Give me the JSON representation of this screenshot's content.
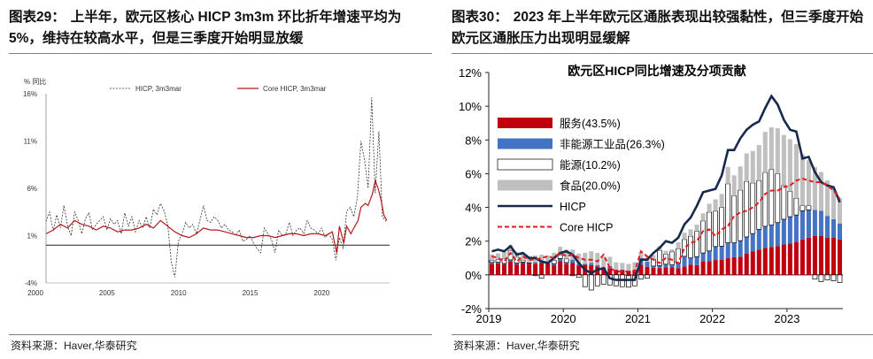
{
  "left": {
    "title_prefix": "图表29：",
    "title": "上半年，欧元区核心 HICP 3m3m 环比折年增速平均为 5%，维持在较高水平，但是三季度开始明显放缓",
    "source": "资料来源：Haver,华泰研究",
    "unit_label": "% 同比"
  },
  "right": {
    "title_prefix": "图表30：",
    "title": "2023 年上半年欧元区通胀表现出较强黏性，但三季度开始欧元区通胀压力出现明显缓解",
    "source": "资料来源：Haver,华泰研究"
  },
  "colors": {
    "core_red": "#b3191c",
    "hicp_line": "#333333",
    "services": "#c0000f",
    "neig": "#4473c4",
    "energy_fill": "#ffffff",
    "food": "#bfbfbf",
    "hicp_navy": "#17294d",
    "core_dashed": "#e41a1c"
  },
  "chart_data": [
    {
      "type": "line",
      "title": "",
      "unit": "% 同比",
      "ylim": [
        -4,
        16
      ],
      "yticks": [
        "16%",
        "11%",
        "6%",
        "1%",
        "-4%"
      ],
      "ytick_values": [
        16,
        11,
        6,
        1,
        -4
      ],
      "xlim": [
        2000,
        2024
      ],
      "xticks": [
        "2000",
        "2005",
        "2010",
        "2015",
        "2020"
      ],
      "xtick_values": [
        2000,
        2005,
        2010,
        2015,
        2020
      ],
      "series": [
        {
          "name": "HICP, 3m3mar",
          "style": "dashed",
          "x": [
            2000.0,
            2000.25,
            2000.5,
            2000.75,
            2001.0,
            2001.25,
            2001.5,
            2001.75,
            2002.0,
            2002.25,
            2002.5,
            2002.75,
            2003.0,
            2003.25,
            2003.5,
            2003.75,
            2004.0,
            2004.25,
            2004.5,
            2004.75,
            2005.0,
            2005.25,
            2005.5,
            2005.75,
            2006.0,
            2006.25,
            2006.5,
            2006.75,
            2007.0,
            2007.25,
            2007.5,
            2007.75,
            2008.0,
            2008.25,
            2008.5,
            2008.75,
            2009.0,
            2009.25,
            2009.5,
            2009.75,
            2010.0,
            2010.25,
            2010.5,
            2010.75,
            2011.0,
            2011.25,
            2011.5,
            2011.75,
            2012.0,
            2012.25,
            2012.5,
            2012.75,
            2013.0,
            2013.25,
            2013.5,
            2013.75,
            2014.0,
            2014.25,
            2014.5,
            2014.75,
            2015.0,
            2015.25,
            2015.5,
            2015.75,
            2016.0,
            2016.25,
            2016.5,
            2016.75,
            2017.0,
            2017.25,
            2017.5,
            2017.75,
            2018.0,
            2018.25,
            2018.5,
            2018.75,
            2019.0,
            2019.25,
            2019.5,
            2019.75,
            2020.0,
            2020.25,
            2020.5,
            2020.75,
            2021.0,
            2021.25,
            2021.5,
            2021.75,
            2022.0,
            2022.25,
            2022.5,
            2022.75,
            2023.0,
            2023.25,
            2023.5,
            2023.75
          ],
          "values": [
            2.5,
            3.5,
            1.5,
            3.2,
            1.8,
            4.2,
            2.0,
            1.0,
            3.5,
            2.6,
            1.2,
            2.8,
            3.4,
            1.6,
            2.2,
            2.6,
            3.0,
            1.6,
            2.8,
            2.2,
            2.6,
            1.2,
            3.4,
            2.0,
            3.0,
            1.4,
            2.6,
            1.8,
            3.0,
            1.8,
            3.8,
            3.2,
            4.4,
            3.6,
            2.2,
            -1.8,
            -3.4,
            0.4,
            1.2,
            2.4,
            1.8,
            2.2,
            1.2,
            2.6,
            4.2,
            2.6,
            2.4,
            3.0,
            2.6,
            1.8,
            2.2,
            1.6,
            1.4,
            1.0,
            1.6,
            0.4,
            0.6,
            1.0,
            0.2,
            -0.4,
            -0.8,
            1.8,
            1.2,
            0.6,
            -0.8,
            1.6,
            1.0,
            1.2,
            2.4,
            1.0,
            1.6,
            1.8,
            1.2,
            2.6,
            1.8,
            1.6,
            1.2,
            1.8,
            0.8,
            1.2,
            0.6,
            -1.6,
            0.8,
            -0.4,
            3.6,
            4.0,
            3.0,
            5.0,
            11.0,
            9.0,
            6.0,
            15.6,
            5.5,
            12.0,
            3.0,
            2.5
          ]
        },
        {
          "name": "Core HICP, 3m3mar",
          "style": "solid",
          "x": [
            2000.0,
            2000.5,
            2001.0,
            2001.5,
            2002.0,
            2002.5,
            2003.0,
            2003.5,
            2004.0,
            2004.5,
            2005.0,
            2005.5,
            2006.0,
            2006.5,
            2007.0,
            2007.5,
            2008.0,
            2008.5,
            2009.0,
            2009.5,
            2010.0,
            2010.5,
            2011.0,
            2011.5,
            2012.0,
            2012.5,
            2013.0,
            2013.5,
            2014.0,
            2014.5,
            2015.0,
            2015.5,
            2016.0,
            2016.5,
            2017.0,
            2017.5,
            2018.0,
            2018.5,
            2019.0,
            2019.5,
            2020.0,
            2020.3,
            2020.5,
            2020.8,
            2021.0,
            2021.3,
            2021.5,
            2021.8,
            2022.0,
            2022.3,
            2022.5,
            2022.8,
            2023.0,
            2023.2,
            2023.4,
            2023.6,
            2023.8
          ],
          "values": [
            1.2,
            1.6,
            2.2,
            1.8,
            2.6,
            2.2,
            2.0,
            1.6,
            2.0,
            1.8,
            1.4,
            1.6,
            1.6,
            1.8,
            2.2,
            1.8,
            2.6,
            2.0,
            1.4,
            1.0,
            0.8,
            1.2,
            1.8,
            1.6,
            1.6,
            1.4,
            1.2,
            1.0,
            0.8,
            0.8,
            1.0,
            1.0,
            0.8,
            1.0,
            1.2,
            1.2,
            1.0,
            1.2,
            1.2,
            1.0,
            1.4,
            -0.8,
            2.0,
            0.2,
            2.0,
            1.2,
            1.8,
            2.6,
            4.0,
            4.4,
            4.2,
            5.4,
            6.8,
            6.0,
            4.8,
            3.2,
            2.6
          ]
        }
      ]
    },
    {
      "type": "bar",
      "stacked": true,
      "title": "欧元区HICP同比增速及分项贡献",
      "ylim": [
        -2,
        12
      ],
      "yticks": [
        "12%",
        "10%",
        "8%",
        "6%",
        "4%",
        "2%",
        "0%",
        "-2%"
      ],
      "ytick_values": [
        12,
        10,
        8,
        6,
        4,
        2,
        0,
        -2
      ],
      "xticks": [
        "2019",
        "2020",
        "2021",
        "2022",
        "2023"
      ],
      "xtick_index": [
        0,
        12,
        24,
        36,
        48
      ],
      "n_months": 57,
      "series": [
        {
          "name": "服务(43.5%)",
          "key": "services",
          "values": [
            0.66,
            0.68,
            0.62,
            0.8,
            0.62,
            0.7,
            0.64,
            0.66,
            0.72,
            0.68,
            0.58,
            0.82,
            0.66,
            0.7,
            0.56,
            0.6,
            0.58,
            0.5,
            0.4,
            0.4,
            0.3,
            0.28,
            0.25,
            0.3,
            0.6,
            0.48,
            0.42,
            0.4,
            0.45,
            0.44,
            0.4,
            0.5,
            0.6,
            0.58,
            0.8,
            0.82,
            0.88,
            0.9,
            1.0,
            1.05,
            1.08,
            1.25,
            1.4,
            1.5,
            1.6,
            1.65,
            1.7,
            1.8,
            1.85,
            1.95,
            2.1,
            2.2,
            2.3,
            2.3,
            2.2,
            2.2,
            2.1
          ]
        },
        {
          "name": "非能源工业品(26.3%)",
          "key": "neig",
          "values": [
            0.08,
            0.07,
            0.06,
            0.09,
            0.08,
            0.06,
            0.04,
            0.09,
            0.1,
            0.07,
            0.08,
            0.15,
            0.07,
            0.2,
            0.1,
            0.06,
            0.12,
            0.08,
            0.05,
            0.12,
            0.02,
            0.03,
            -0.05,
            -0.05,
            0.4,
            0.3,
            0.1,
            0.15,
            0.18,
            0.15,
            0.3,
            0.6,
            0.4,
            0.5,
            0.5,
            0.6,
            0.8,
            0.8,
            0.9,
            0.85,
            0.95,
            1.0,
            1.05,
            1.2,
            1.28,
            1.3,
            1.4,
            1.5,
            1.6,
            1.6,
            1.7,
            1.65,
            1.55,
            1.5,
            1.3,
            1.1,
            0.95
          ]
        },
        {
          "name": "能源(10.2%)",
          "key": "energy",
          "values": [
            0.12,
            0.15,
            0.3,
            0.55,
            0.35,
            0.12,
            0.04,
            -0.05,
            -0.2,
            0.0,
            0.2,
            0.2,
            0.22,
            -0.05,
            -0.15,
            -0.7,
            -0.9,
            -0.65,
            -0.55,
            -0.6,
            -0.65,
            -0.7,
            -0.68,
            -0.6,
            -0.25,
            -0.2,
            0.4,
            0.9,
            0.6,
            0.78,
            0.85,
            1.0,
            1.3,
            1.5,
            1.9,
            2.3,
            2.1,
            2.3,
            3.5,
            2.8,
            3.0,
            3.3,
            3.0,
            2.9,
            3.2,
            3.3,
            2.9,
            2.0,
            1.5,
            1.0,
            0.3,
            0.25,
            -0.25,
            -0.4,
            -0.3,
            -0.35,
            -0.45
          ]
        },
        {
          "name": "食品(20.0%)",
          "key": "food",
          "values": [
            0.35,
            0.38,
            0.38,
            0.32,
            0.3,
            0.38,
            0.4,
            0.4,
            0.38,
            0.4,
            0.45,
            0.5,
            0.55,
            0.6,
            0.6,
            0.65,
            0.7,
            0.72,
            0.6,
            0.55,
            0.42,
            0.4,
            0.4,
            0.45,
            0.32,
            0.3,
            0.25,
            0.25,
            0.2,
            0.15,
            0.38,
            0.4,
            0.4,
            0.4,
            0.45,
            0.5,
            0.7,
            0.8,
            1.0,
            1.2,
            1.4,
            1.65,
            1.9,
            2.1,
            2.4,
            2.5,
            2.7,
            3.0,
            3.1,
            3.2,
            3.05,
            2.7,
            2.55,
            2.3,
            2.1,
            1.8,
            1.5
          ]
        }
      ],
      "lines": [
        {
          "name": "HICP",
          "key": "hicp",
          "style": "solid",
          "values": [
            1.4,
            1.5,
            1.4,
            1.7,
            1.2,
            1.3,
            1.0,
            1.0,
            0.8,
            0.7,
            1.0,
            1.3,
            1.4,
            1.2,
            0.7,
            0.3,
            0.1,
            0.3,
            0.4,
            -0.2,
            -0.3,
            -0.3,
            -0.3,
            -0.3,
            0.9,
            0.9,
            1.3,
            1.6,
            2.0,
            1.9,
            2.2,
            3.0,
            3.4,
            4.1,
            4.9,
            5.0,
            5.1,
            5.9,
            7.4,
            7.4,
            8.1,
            8.6,
            8.9,
            9.1,
            9.9,
            10.6,
            10.1,
            9.2,
            8.6,
            8.5,
            6.9,
            7.0,
            6.1,
            5.5,
            5.3,
            5.2,
            4.3
          ]
        },
        {
          "name": "Core HICP",
          "key": "core",
          "style": "dashed",
          "values": [
            1.1,
            1.0,
            0.8,
            1.3,
            0.8,
            1.1,
            0.9,
            0.9,
            1.0,
            1.1,
            1.0,
            1.3,
            1.1,
            1.2,
            1.0,
            0.9,
            0.9,
            0.8,
            1.2,
            0.4,
            0.2,
            0.2,
            0.2,
            0.2,
            1.4,
            1.1,
            0.9,
            0.7,
            1.0,
            0.9,
            0.7,
            1.6,
            1.9,
            2.0,
            2.6,
            2.7,
            2.3,
            2.7,
            2.9,
            3.5,
            3.7,
            3.8,
            4.0,
            4.3,
            4.8,
            5.0,
            5.0,
            5.2,
            5.3,
            5.6,
            5.7,
            5.6,
            5.5,
            5.5,
            5.3,
            5.0,
            4.5
          ]
        }
      ],
      "legend": [
        "服务(43.5%)",
        "非能源工业品(26.3%)",
        "能源(10.2%)",
        "食品(20.0%)",
        "HICP",
        "Core HICP"
      ]
    }
  ]
}
